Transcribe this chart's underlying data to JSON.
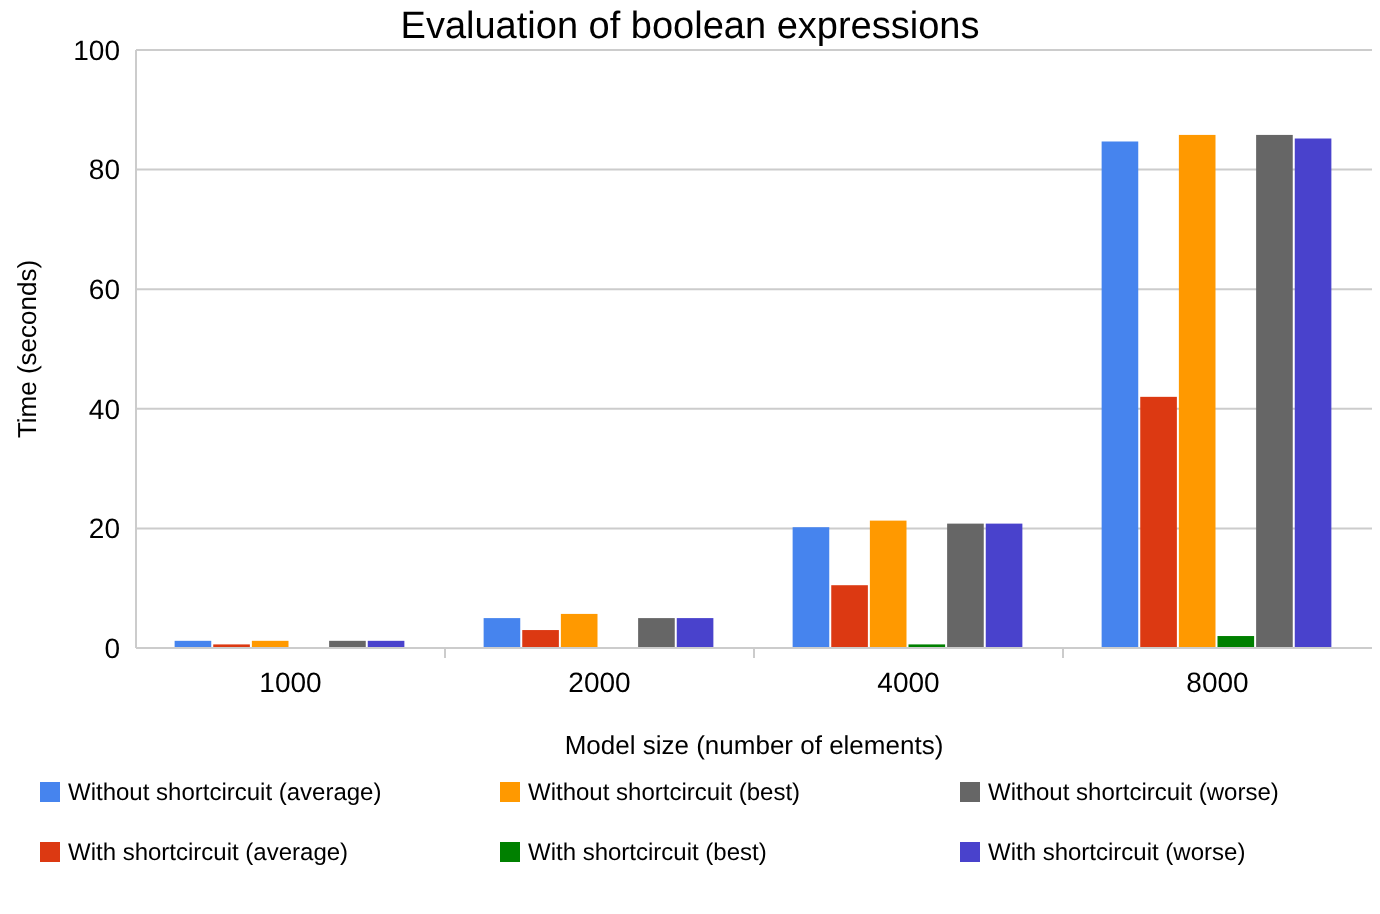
{
  "chart_data": {
    "type": "bar",
    "title": "Evaluation of boolean expressions",
    "xlabel": "Model size (number of elements)",
    "ylabel": "Time (seconds)",
    "categories": [
      "1000",
      "2000",
      "4000",
      "8000"
    ],
    "series": [
      {
        "name": "Without shortcircuit (average)",
        "color": "#4684ee",
        "values": [
          1.2,
          5,
          20.2,
          84.7
        ]
      },
      {
        "name": "With shortcircuit (average)",
        "color": "#dc3912",
        "values": [
          0.6,
          3,
          10.5,
          42
        ]
      },
      {
        "name": "Without shortcircuit (best)",
        "color": "#ff9900",
        "values": [
          1.2,
          5.7,
          21.3,
          85.8
        ]
      },
      {
        "name": "With shortcircuit (best)",
        "color": "#008000",
        "values": [
          0,
          0,
          0.6,
          2
        ]
      },
      {
        "name": "Without shortcircuit (worse)",
        "color": "#666666",
        "values": [
          1.2,
          5,
          20.8,
          85.8
        ]
      },
      {
        "name": "With shortcircuit (worse)",
        "color": "#4942cc",
        "values": [
          1.2,
          5,
          20.8,
          85.2
        ]
      }
    ],
    "ylim": [
      0,
      100
    ],
    "yticks": [
      0,
      20,
      40,
      60,
      80,
      100
    ],
    "grid": "y",
    "legend": "bottom"
  }
}
